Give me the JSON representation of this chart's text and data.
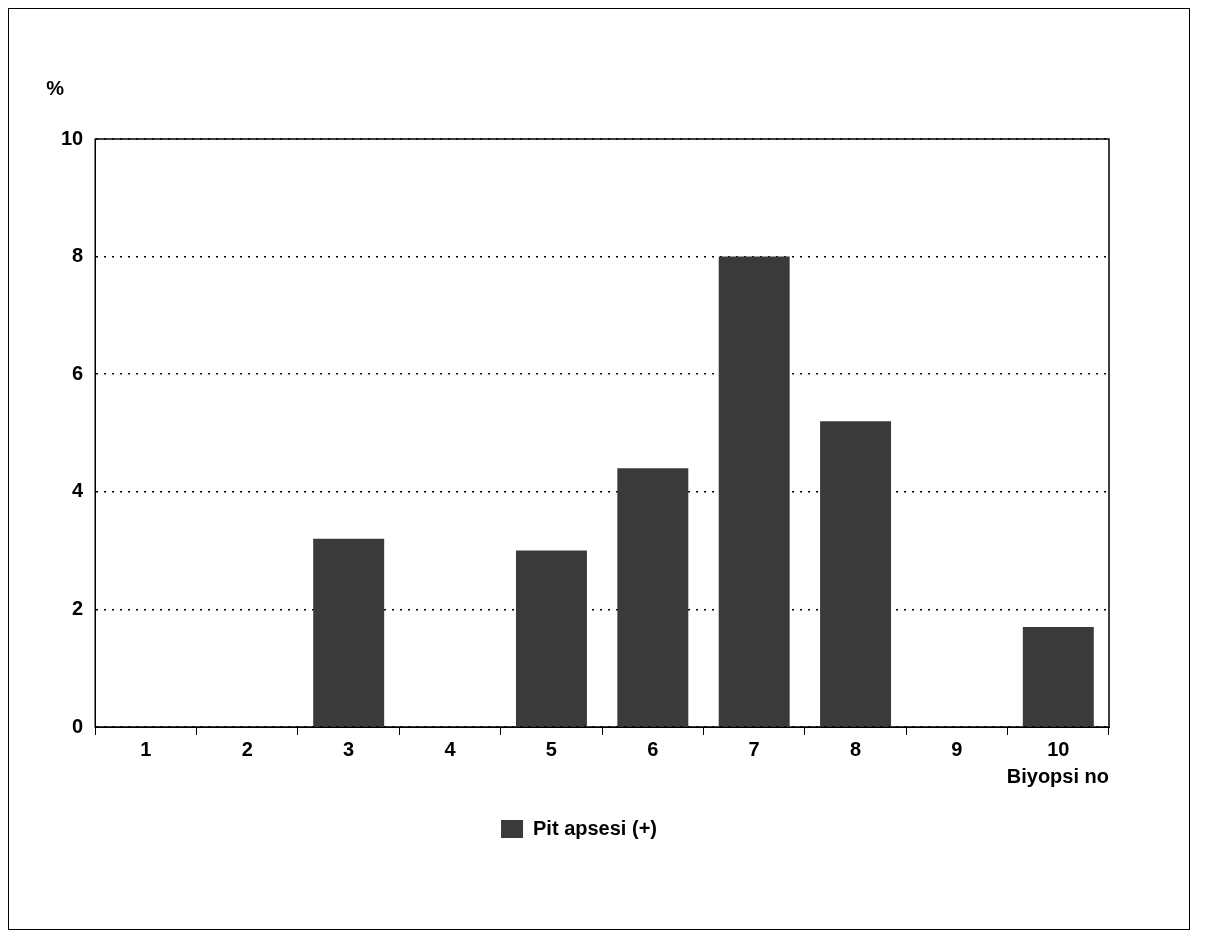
{
  "chart_data": {
    "type": "bar",
    "categories": [
      "1",
      "2",
      "3",
      "4",
      "5",
      "6",
      "7",
      "8",
      "9",
      "10"
    ],
    "series": [
      {
        "name": "Pit apsesi (+)",
        "color": "#3a3a3a",
        "values": [
          0,
          0,
          3.2,
          0,
          3.0,
          4.4,
          8.0,
          5.2,
          0,
          1.7
        ]
      }
    ],
    "xlabel": "Biyopsi no",
    "ylabel": "%",
    "ylim": [
      0,
      10
    ],
    "yticks": [
      0,
      2,
      4,
      6,
      8,
      10
    ],
    "grid": "y",
    "legend": "bottom"
  }
}
